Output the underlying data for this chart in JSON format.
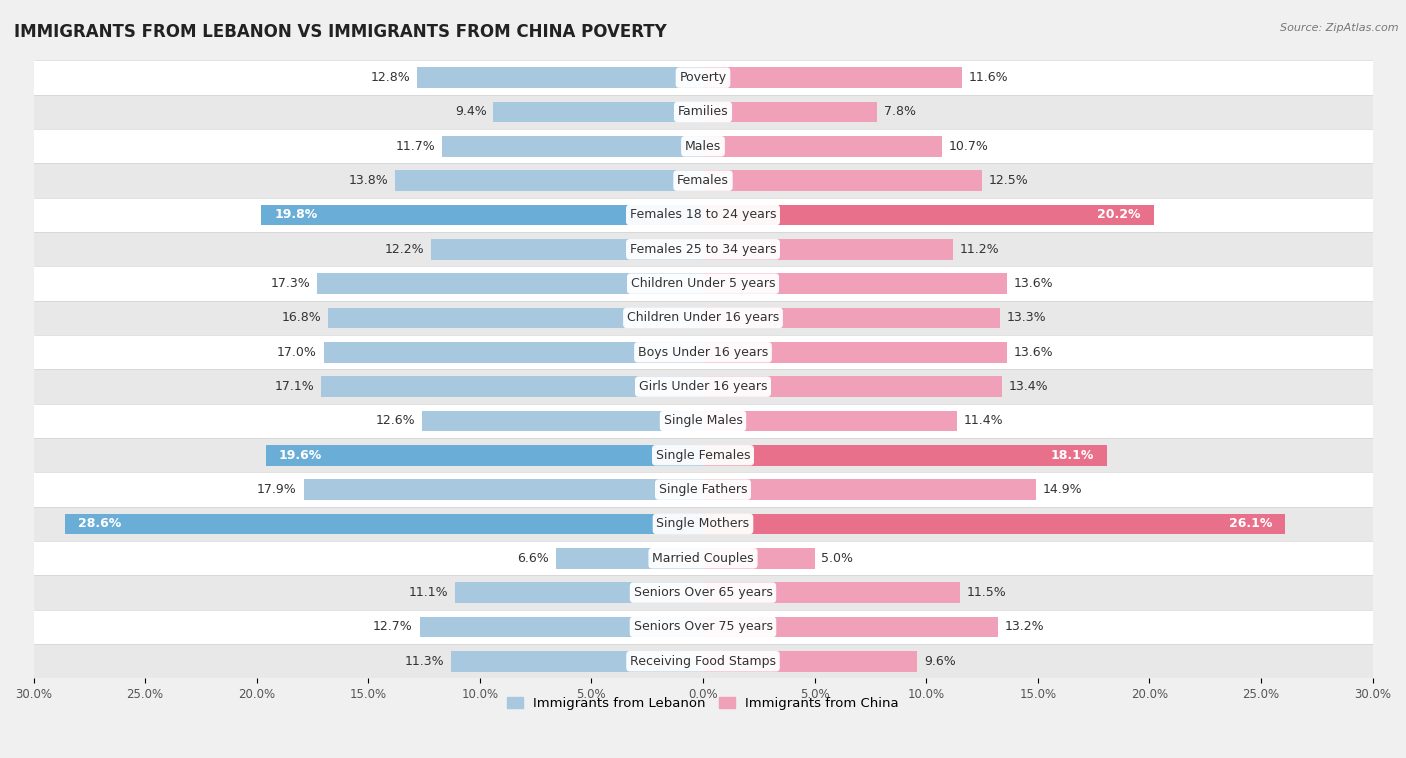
{
  "title": "IMMIGRANTS FROM LEBANON VS IMMIGRANTS FROM CHINA POVERTY",
  "source": "Source: ZipAtlas.com",
  "categories": [
    "Poverty",
    "Families",
    "Males",
    "Females",
    "Females 18 to 24 years",
    "Females 25 to 34 years",
    "Children Under 5 years",
    "Children Under 16 years",
    "Boys Under 16 years",
    "Girls Under 16 years",
    "Single Males",
    "Single Females",
    "Single Fathers",
    "Single Mothers",
    "Married Couples",
    "Seniors Over 65 years",
    "Seniors Over 75 years",
    "Receiving Food Stamps"
  ],
  "lebanon_values": [
    12.8,
    9.4,
    11.7,
    13.8,
    19.8,
    12.2,
    17.3,
    16.8,
    17.0,
    17.1,
    12.6,
    19.6,
    17.9,
    28.6,
    6.6,
    11.1,
    12.7,
    11.3
  ],
  "china_values": [
    11.6,
    7.8,
    10.7,
    12.5,
    20.2,
    11.2,
    13.6,
    13.3,
    13.6,
    13.4,
    11.4,
    18.1,
    14.9,
    26.1,
    5.0,
    11.5,
    13.2,
    9.6
  ],
  "lebanon_color": "#a8c8e0",
  "china_color": "#f0a0b8",
  "lebanon_highlight_indices": [
    4,
    11,
    13
  ],
  "china_highlight_indices": [
    4,
    11,
    13
  ],
  "lebanon_highlight_color": "#6aaed8",
  "china_highlight_color": "#e8708a",
  "background_color": "#f0f0f0",
  "row_odd_color": "#ffffff",
  "row_even_color": "#e8e8e8",
  "axis_max": 30.0,
  "label_fontsize": 9,
  "title_fontsize": 12,
  "bar_height": 0.6,
  "legend_lebanon": "Immigrants from Lebanon",
  "legend_china": "Immigrants from China"
}
